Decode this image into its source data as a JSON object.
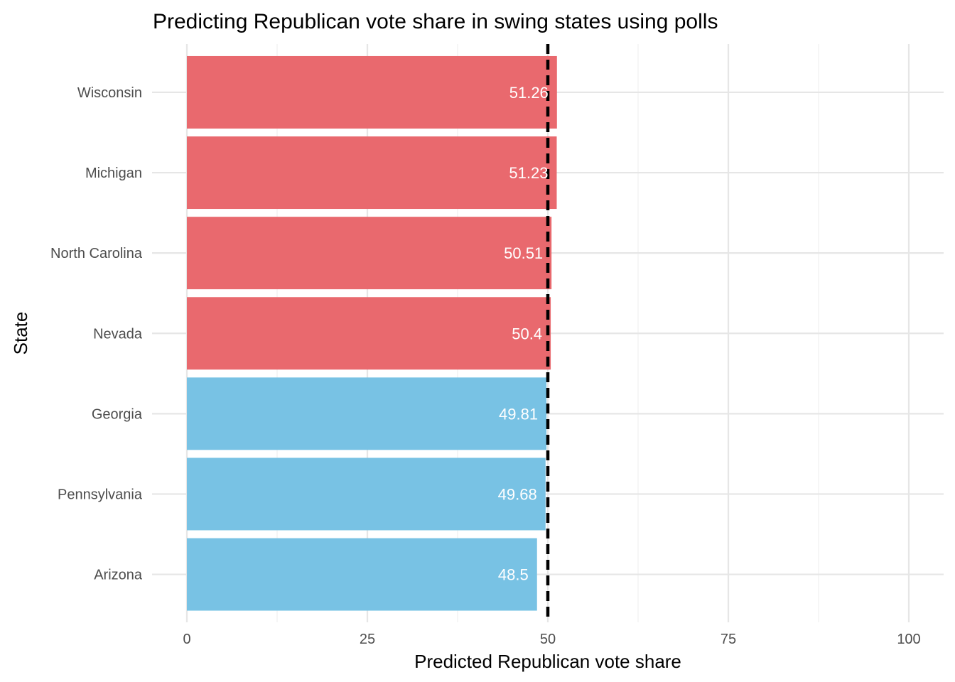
{
  "chart_data": {
    "type": "bar",
    "orientation": "horizontal",
    "title": "Predicting Republican vote share in swing states using polls",
    "xlabel": "Predicted Republican vote share",
    "ylabel": "State",
    "categories": [
      "Wisconsin",
      "Michigan",
      "North Carolina",
      "Nevada",
      "Georgia",
      "Pennsylvania",
      "Arizona"
    ],
    "values": [
      51.26,
      51.23,
      50.51,
      50.4,
      49.81,
      49.68,
      48.5
    ],
    "value_labels": [
      "51.26",
      "51.23",
      "50.51",
      "50.4",
      "49.81",
      "49.68",
      "48.5"
    ],
    "bar_colors": [
      "#e9696e",
      "#e9696e",
      "#e9696e",
      "#e9696e",
      "#78c2e4",
      "#78c2e4",
      "#78c2e4"
    ],
    "xlim": [
      0,
      100
    ],
    "x_ticks": [
      0,
      25,
      50,
      75,
      100
    ],
    "x_tick_labels": [
      "0",
      "25",
      "50",
      "75",
      "100"
    ],
    "reference_line": {
      "x": 50,
      "style": "dashed",
      "color": "#000000"
    },
    "grid": true,
    "legend": "none"
  }
}
